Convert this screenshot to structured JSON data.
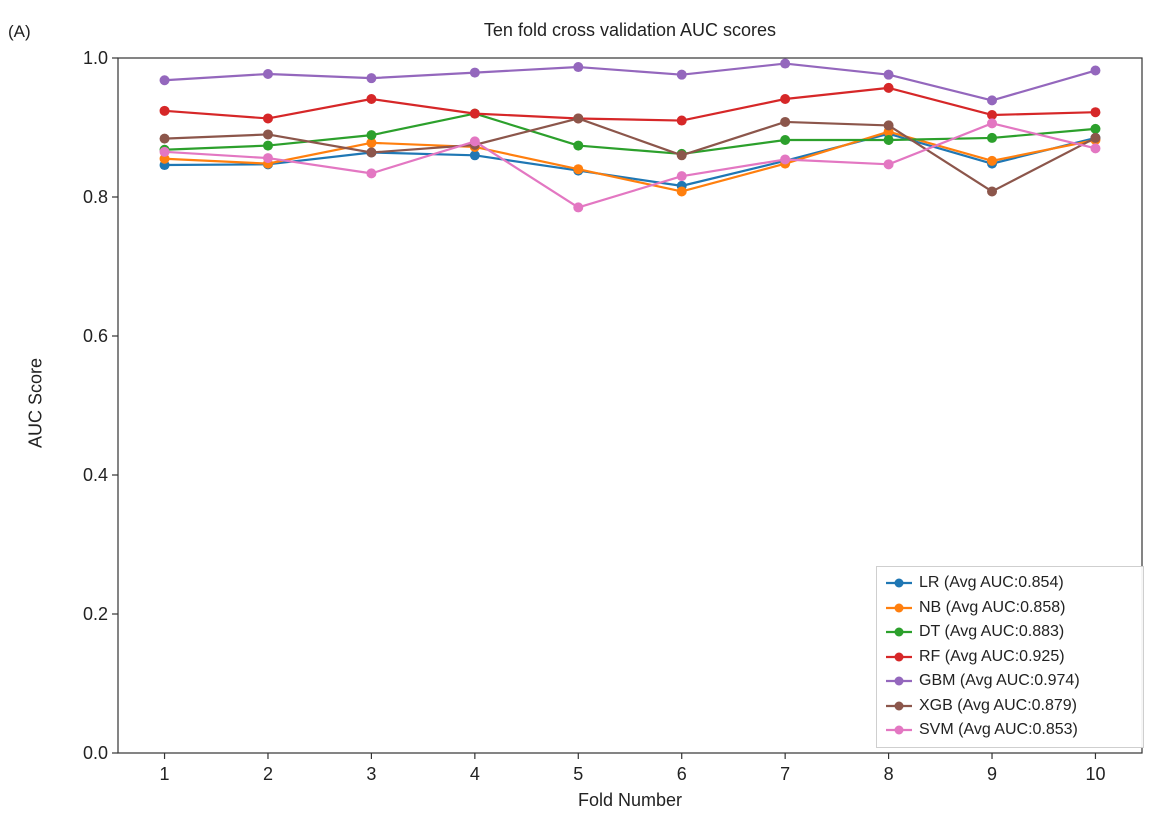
{
  "panel_label": "(A)",
  "chart_data": {
    "type": "line",
    "title": "Ten fold cross validation AUC scores",
    "xlabel": "Fold Number",
    "ylabel": "AUC Score",
    "x": [
      1,
      2,
      3,
      4,
      5,
      6,
      7,
      8,
      9,
      10
    ],
    "xlim": [
      0.55,
      10.45
    ],
    "ylim": [
      0.0,
      1.0
    ],
    "yticks": [
      "0.0",
      "0.2",
      "0.4",
      "0.6",
      "0.8",
      "1.0"
    ],
    "xticks": [
      "1",
      "2",
      "3",
      "4",
      "5",
      "6",
      "7",
      "8",
      "9",
      "10"
    ],
    "grid": false,
    "legend_position": "lower-right",
    "series": [
      {
        "name": "LR (Avg AUC:0.854)",
        "color": "#1f77b4",
        "values": [
          0.846,
          0.847,
          0.864,
          0.86,
          0.838,
          0.816,
          0.852,
          0.891,
          0.848,
          0.885
        ]
      },
      {
        "name": "NB (Avg AUC:0.858)",
        "color": "#ff7f0e",
        "values": [
          0.855,
          0.848,
          0.878,
          0.872,
          0.84,
          0.808,
          0.848,
          0.894,
          0.852,
          0.882
        ]
      },
      {
        "name": "DT (Avg AUC:0.883)",
        "color": "#2ca02c",
        "values": [
          0.868,
          0.874,
          0.889,
          0.92,
          0.874,
          0.862,
          0.882,
          0.882,
          0.885,
          0.898
        ]
      },
      {
        "name": "RF (Avg AUC:0.925)",
        "color": "#d62728",
        "values": [
          0.924,
          0.913,
          0.941,
          0.92,
          0.913,
          0.91,
          0.941,
          0.957,
          0.918,
          0.922
        ]
      },
      {
        "name": "GBM (Avg AUC:0.974)",
        "color": "#9467bd",
        "values": [
          0.968,
          0.977,
          0.971,
          0.979,
          0.987,
          0.976,
          0.992,
          0.976,
          0.939,
          0.982
        ]
      },
      {
        "name": "XGB (Avg AUC:0.879)",
        "color": "#8c564b",
        "values": [
          0.884,
          0.89,
          0.864,
          0.875,
          0.913,
          0.86,
          0.908,
          0.903,
          0.808,
          0.885
        ]
      },
      {
        "name": "SVM (Avg AUC:0.853)",
        "color": "#e377c2",
        "values": [
          0.865,
          0.856,
          0.834,
          0.88,
          0.785,
          0.83,
          0.854,
          0.847,
          0.906,
          0.87
        ]
      }
    ]
  }
}
